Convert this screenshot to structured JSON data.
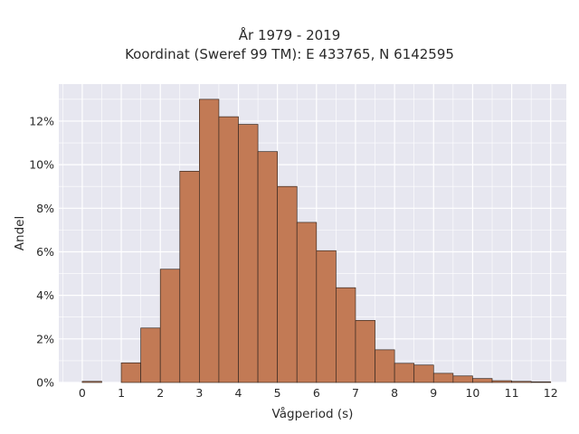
{
  "chart_data": {
    "type": "bar",
    "title": "År 1979 - 2019",
    "subtitle": "Koordinat (Sweref 99 TM): E 433765, N 6142595",
    "xlabel": "Vågperiod (s)",
    "ylabel": "Andel",
    "bin_width": 0.5,
    "bin_starts": [
      0,
      0.5,
      1,
      1.5,
      2,
      2.5,
      3,
      3.5,
      4,
      4.5,
      5,
      5.5,
      6,
      6.5,
      7,
      7.5,
      8,
      8.5,
      9,
      9.5,
      10,
      10.5,
      11,
      11.5
    ],
    "values": [
      0.05,
      0,
      0.9,
      2.5,
      5.2,
      9.7,
      13.0,
      12.2,
      11.85,
      10.6,
      9.0,
      7.35,
      6.05,
      4.35,
      2.85,
      1.5,
      0.88,
      0.8,
      0.42,
      0.3,
      0.18,
      0.08,
      0.05,
      0.03
    ],
    "xticks": [
      "0",
      "1",
      "2",
      "3",
      "4",
      "5",
      "6",
      "7",
      "8",
      "9",
      "10",
      "11",
      "12"
    ],
    "xlim": [
      -0.6,
      12.4
    ],
    "yticks": [
      "0%",
      "2%",
      "4%",
      "6%",
      "8%",
      "10%",
      "12%"
    ],
    "ylim": [
      0,
      13.7
    ],
    "grid": true,
    "bar_color": "#c27a55",
    "edge_color": "#3a2a22",
    "background": "#e7e7f0"
  }
}
